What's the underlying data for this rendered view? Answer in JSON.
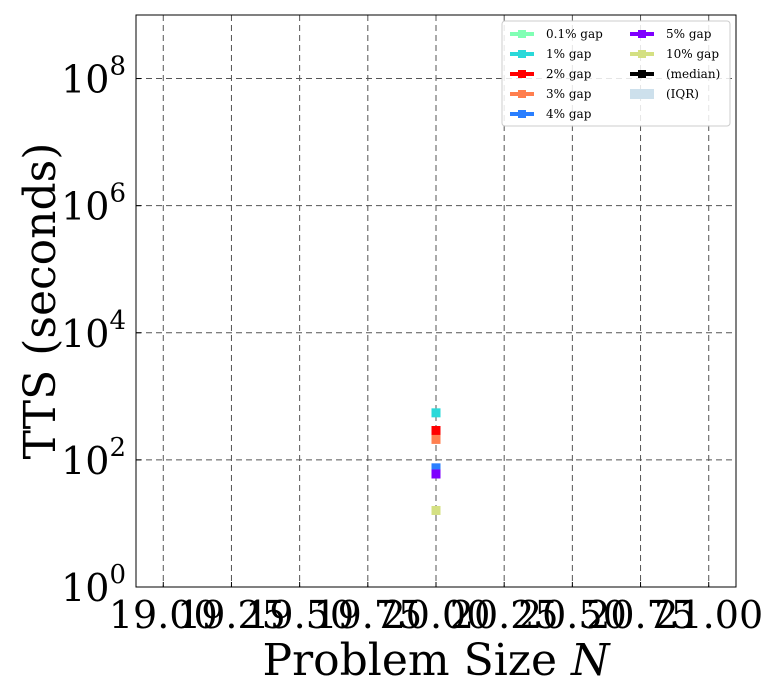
{
  "chart_data": {
    "type": "scatter",
    "title": "",
    "xlabel": "Problem Size",
    "xlabel_var": "N",
    "ylabel": "TTS (seconds)",
    "xlim": [
      18.9,
      21.1
    ],
    "ylim": [
      1,
      1000000000
    ],
    "yscale": "log",
    "grid": true,
    "x_ticks": [
      "19.00",
      "19.25",
      "19.50",
      "19.75",
      "20.00",
      "20.25",
      "20.50",
      "20.75",
      "21.00"
    ],
    "y_ticks": [
      {
        "base": "10",
        "exp": "0",
        "value": 1
      },
      {
        "base": "10",
        "exp": "2",
        "value": 100
      },
      {
        "base": "10",
        "exp": "4",
        "value": 10000
      },
      {
        "base": "10",
        "exp": "6",
        "value": 1000000
      },
      {
        "base": "10",
        "exp": "8",
        "value": 100000000
      }
    ],
    "legend_position": "top-right",
    "series": [
      {
        "name": "0.1% gap",
        "color": "#80ffb4",
        "points": []
      },
      {
        "name": "1% gap",
        "color": "#2ad9d9",
        "points": [
          {
            "x": 20.0,
            "y": 550
          }
        ]
      },
      {
        "name": "2% gap",
        "color": "#ff0000",
        "points": [
          {
            "x": 20.0,
            "y": 290
          }
        ]
      },
      {
        "name": "3% gap",
        "color": "#ff7f4f",
        "points": [
          {
            "x": 20.0,
            "y": 210
          }
        ]
      },
      {
        "name": "4% gap",
        "color": "#2a7fff",
        "points": [
          {
            "x": 20.0,
            "y": 75
          }
        ]
      },
      {
        "name": "5% gap",
        "color": "#7f00ff",
        "points": [
          {
            "x": 20.0,
            "y": 60
          }
        ]
      },
      {
        "name": "10% gap",
        "color": "#d4e082",
        "points": [
          {
            "x": 20.0,
            "y": 16
          }
        ]
      },
      {
        "name": "(median)",
        "color": "#000000",
        "points": []
      }
    ],
    "legend": [
      {
        "label": "0.1% gap",
        "color": "#80ffb4",
        "kind": "line"
      },
      {
        "label": "1% gap",
        "color": "#2ad9d9",
        "kind": "line"
      },
      {
        "label": "2% gap",
        "color": "#ff0000",
        "kind": "line"
      },
      {
        "label": "3% gap",
        "color": "#ff7f4f",
        "kind": "line"
      },
      {
        "label": "4% gap",
        "color": "#2a7fff",
        "kind": "line"
      },
      {
        "label": "5% gap",
        "color": "#7f00ff",
        "kind": "line"
      },
      {
        "label": "10% gap",
        "color": "#d4e082",
        "kind": "line"
      },
      {
        "label": "(median)",
        "color": "#000000",
        "kind": "line"
      },
      {
        "label": "(IQR)",
        "color": "#cde0ec",
        "kind": "patch"
      }
    ]
  }
}
